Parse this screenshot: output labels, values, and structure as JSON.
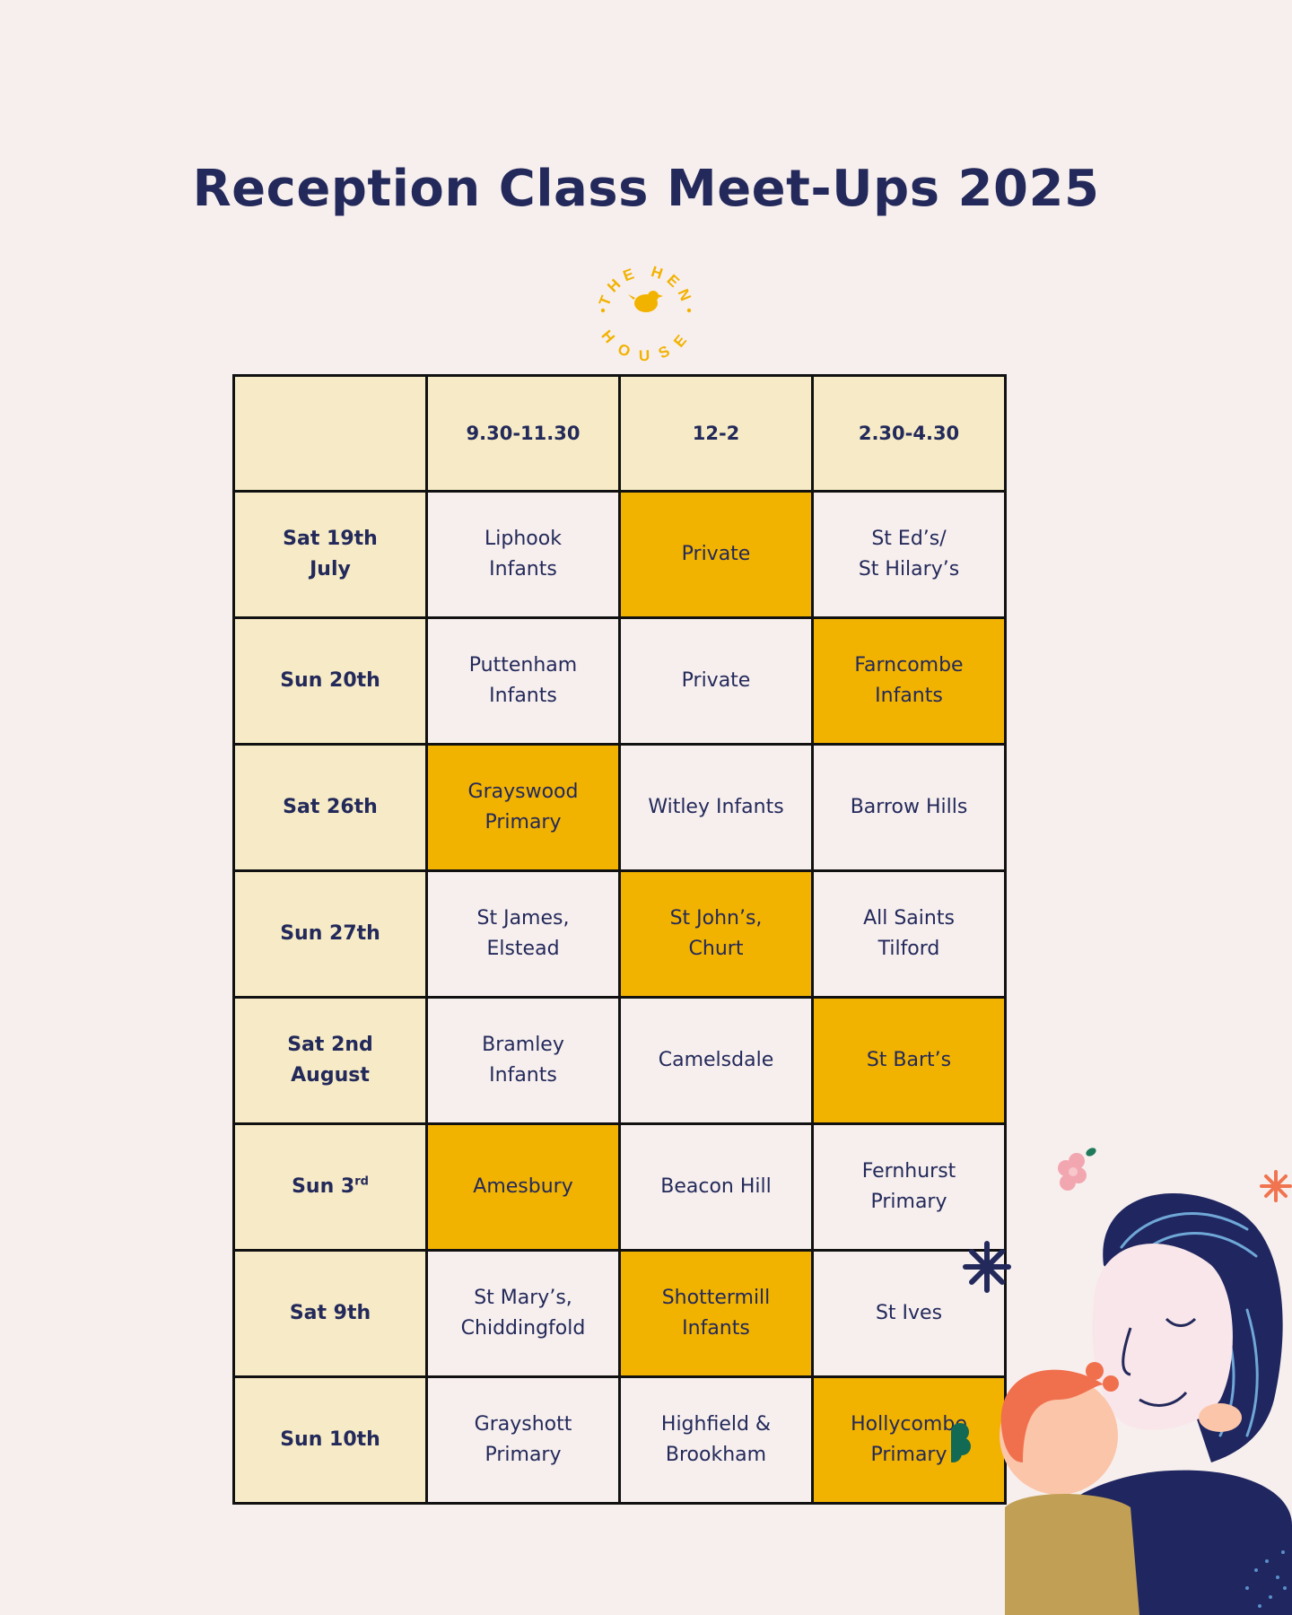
{
  "title": "Reception Class Meet-Ups 2025",
  "logo": {
    "text_top": "THE HEN",
    "text_bottom": "HOUSE",
    "icon": "hen-icon",
    "color": "#f2b200"
  },
  "colors": {
    "background": "#f7efee",
    "header_fill": "#f6ebc6",
    "highlight": "#f2b200",
    "text": "#23295a",
    "border": "#111111"
  },
  "table": {
    "headers": [
      "",
      "9.30-11.30",
      "12-2",
      "2.30-4.30"
    ],
    "rows": [
      {
        "date": "Sat 19th\nJuly",
        "date_sup": "",
        "slots": [
          {
            "text": "Liphook\nInfants",
            "highlight": false
          },
          {
            "text": "Private",
            "highlight": true
          },
          {
            "text": "St Ed’s/\nSt Hilary’s",
            "highlight": false
          }
        ]
      },
      {
        "date": "Sun 20th",
        "date_sup": "",
        "slots": [
          {
            "text": "Puttenham\nInfants",
            "highlight": false
          },
          {
            "text": "Private",
            "highlight": false
          },
          {
            "text": "Farncombe\nInfants",
            "highlight": true
          }
        ]
      },
      {
        "date": "Sat 26th",
        "date_sup": "",
        "slots": [
          {
            "text": "Grayswood\nPrimary",
            "highlight": true
          },
          {
            "text": "Witley Infants",
            "highlight": false
          },
          {
            "text": "Barrow Hills",
            "highlight": false
          }
        ]
      },
      {
        "date": "Sun 27th",
        "date_sup": "",
        "slots": [
          {
            "text": "St James,\nElstead",
            "highlight": false
          },
          {
            "text": "St John’s,\nChurt",
            "highlight": true
          },
          {
            "text": "All Saints\nTilford",
            "highlight": false
          }
        ]
      },
      {
        "date": "Sat 2nd\nAugust",
        "date_sup": "",
        "slots": [
          {
            "text": "Bramley\nInfants",
            "highlight": false
          },
          {
            "text": "Camelsdale",
            "highlight": false
          },
          {
            "text": "St Bart’s",
            "highlight": true
          }
        ]
      },
      {
        "date": "Sun 3",
        "date_sup": "rd",
        "slots": [
          {
            "text": "Amesbury",
            "highlight": true
          },
          {
            "text": "Beacon Hill",
            "highlight": false
          },
          {
            "text": "Fernhurst\nPrimary",
            "highlight": false
          }
        ]
      },
      {
        "date": "Sat 9th",
        "date_sup": "",
        "slots": [
          {
            "text": "St Mary’s,\nChiddingfold",
            "highlight": false
          },
          {
            "text": "Shottermill\nInfants",
            "highlight": true
          },
          {
            "text": "St Ives",
            "highlight": false
          }
        ]
      },
      {
        "date": "Sun 10th",
        "date_sup": "",
        "slots": [
          {
            "text": "Grayshott\nPrimary",
            "highlight": false
          },
          {
            "text": "Highfield &\nBrookham",
            "highlight": false
          },
          {
            "text": "Hollycombe\nPrimary",
            "highlight": true
          }
        ]
      }
    ]
  },
  "illustration": {
    "subject": "mother-and-child-illustration"
  }
}
